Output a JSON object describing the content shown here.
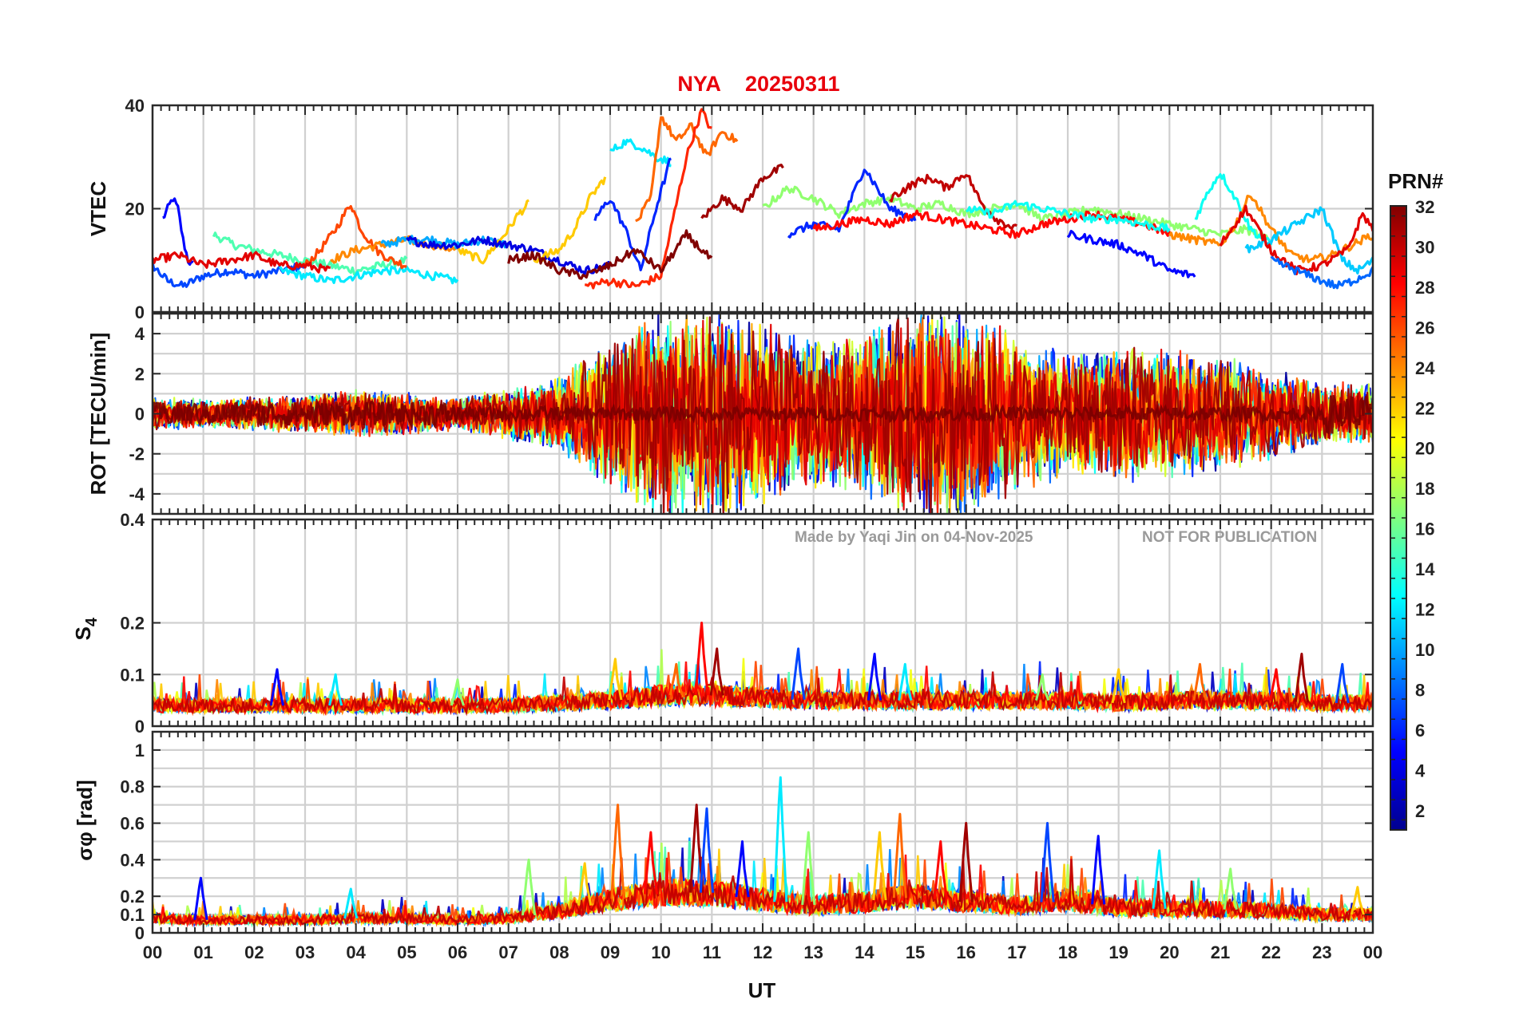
{
  "chart_data": {
    "type": "line",
    "title": {
      "station": "NYA",
      "date": "20250311"
    },
    "xlabel": "UT",
    "xlim": [
      0,
      24
    ],
    "x_tick_labels": [
      "00",
      "01",
      "02",
      "03",
      "04",
      "05",
      "06",
      "07",
      "08",
      "09",
      "10",
      "11",
      "12",
      "13",
      "14",
      "15",
      "16",
      "17",
      "18",
      "19",
      "20",
      "21",
      "22",
      "23",
      "00"
    ],
    "watermark": {
      "left": "Made by Yaqi Jin on 04-Nov-2025",
      "right": "NOT FOR PUBLICATION"
    },
    "colorbar": {
      "label": "PRN#",
      "range": [
        1,
        32
      ],
      "tick_labels": [
        "2",
        "4",
        "6",
        "8",
        "10",
        "12",
        "14",
        "16",
        "18",
        "20",
        "22",
        "24",
        "26",
        "28",
        "30",
        "32"
      ],
      "tick_values": [
        2,
        4,
        6,
        8,
        10,
        12,
        14,
        16,
        18,
        20,
        22,
        24,
        26,
        28,
        30,
        32
      ],
      "colormap": "jet"
    },
    "panels": [
      {
        "id": "vtec",
        "ylabel": "VTEC",
        "ylim": [
          0,
          40
        ],
        "y_tick_labels": [
          "0",
          "20",
          "40"
        ],
        "y_tick_values": [
          0,
          20,
          40
        ],
        "series": [
          {
            "prn": 5,
            "x": [
              0.2,
              0.3,
              0.4,
              0.5,
              0.6,
              0.7,
              0.8
            ],
            "y": [
              18,
              20,
              22,
              20,
              14,
              10,
              9
            ]
          },
          {
            "prn": 7,
            "x": [
              0.0,
              0.3,
              0.6,
              1.0,
              1.5,
              2.0,
              2.5,
              3.0
            ],
            "y": [
              9,
              6,
              5,
              7,
              8,
              7,
              8,
              9
            ]
          },
          {
            "prn": 15,
            "x": [
              1.2,
              1.6,
              2.0,
              2.5,
              3.0,
              3.5,
              4.0,
              4.5,
              5.0
            ],
            "y": [
              15,
              13,
              12,
              11,
              10,
              9,
              8,
              9,
              10
            ]
          },
          {
            "prn": 12,
            "x": [
              2.5,
              3.0,
              3.5,
              4.0,
              4.5,
              5.0,
              5.5,
              6.0
            ],
            "y": [
              8,
              7,
              6,
              7,
              8,
              8,
              7,
              6
            ]
          },
          {
            "prn": 26,
            "x": [
              3.0,
              3.3,
              3.6,
              3.9,
              4.1,
              4.4,
              4.7,
              5.0
            ],
            "y": [
              9,
              12,
              16,
              21,
              16,
              12,
              10,
              9
            ]
          },
          {
            "prn": 24,
            "x": [
              3.5,
              4.0,
              4.5,
              5.0,
              5.5,
              6.0
            ],
            "y": [
              10,
              12,
              13,
              14,
              13,
              12
            ]
          },
          {
            "prn": 10,
            "x": [
              4.5,
              5.0,
              5.5,
              6.0,
              6.5,
              7.0
            ],
            "y": [
              13,
              14,
              14,
              13,
              14,
              13
            ]
          },
          {
            "prn": 22,
            "x": [
              6.0,
              6.5,
              7.0,
              7.2,
              7.4
            ],
            "y": [
              12,
              10,
              16,
              19,
              21
            ]
          },
          {
            "prn": 29,
            "x": [
              0.0,
              0.5,
              1.0,
              1.5,
              2.0,
              2.5,
              3.0,
              3.5
            ],
            "y": [
              10,
              11,
              9,
              10,
              11,
              9,
              9,
              8
            ]
          },
          {
            "prn": 4,
            "x": [
              5.0,
              5.5,
              6.0,
              6.5,
              7.0,
              7.5,
              8.0,
              8.5,
              9.0
            ],
            "y": [
              14,
              13,
              13,
              14,
              13,
              12,
              10,
              8,
              9
            ]
          },
          {
            "prn": 22,
            "x": [
              7.5,
              8.0,
              8.3,
              8.6,
              8.9
            ],
            "y": [
              10,
              12,
              16,
              22,
              26
            ]
          },
          {
            "prn": 12,
            "x": [
              9.0,
              9.3,
              9.6,
              9.9,
              10.2
            ],
            "y": [
              31,
              33,
              32,
              30,
              29
            ]
          },
          {
            "prn": 25,
            "x": [
              9.5,
              9.8,
              10.0,
              10.3,
              10.6,
              10.9,
              11.2,
              11.5
            ],
            "y": [
              17,
              22,
              38,
              33,
              36,
              30,
              35,
              33
            ]
          },
          {
            "prn": 27,
            "x": [
              8.5,
              9.0,
              9.5,
              10.0,
              10.5,
              10.8,
              11.0
            ],
            "y": [
              5,
              6,
              5,
              7,
              30,
              39,
              35
            ]
          },
          {
            "prn": 31,
            "x": [
              10.8,
              11.2,
              11.6,
              12.0,
              12.4
            ],
            "y": [
              18,
              22,
              20,
              26,
              28
            ]
          },
          {
            "prn": 6,
            "x": [
              8.7,
              9.0,
              9.3,
              9.6,
              9.9,
              10.2
            ],
            "y": [
              18,
              22,
              16,
              8,
              20,
              30
            ]
          },
          {
            "prn": 17,
            "x": [
              12.0,
              12.5,
              13.0,
              13.5,
              14.0,
              14.5,
              15.0,
              15.5,
              16.0,
              16.5,
              17.0,
              17.5,
              18.0,
              18.5,
              19.0,
              19.5,
              20.0,
              20.5,
              21.0,
              21.5,
              22.0
            ],
            "y": [
              20,
              24,
              22,
              19,
              21,
              22,
              20,
              21,
              19,
              20,
              21,
              18,
              19,
              20,
              19,
              18,
              17,
              16,
              15,
              16,
              14
            ]
          },
          {
            "prn": 6,
            "x": [
              12.5,
              13.0,
              13.5,
              14.0,
              14.5,
              15.0
            ],
            "y": [
              15,
              17,
              16,
              28,
              20,
              18
            ]
          },
          {
            "prn": 28,
            "x": [
              13.0,
              13.5,
              14.0,
              14.5,
              15.0,
              15.5,
              16.0,
              16.5,
              17.0,
              17.5,
              18.0,
              18.5,
              19.0,
              19.5,
              20.0
            ],
            "y": [
              16,
              17,
              18,
              17,
              19,
              18,
              17,
              16,
              15,
              17,
              18,
              19,
              18,
              17,
              15
            ]
          },
          {
            "prn": 30,
            "x": [
              14.5,
              15.0,
              15.3,
              15.6,
              16.0,
              16.3,
              16.6,
              17.0
            ],
            "y": [
              22,
              25,
              26,
              24,
              27,
              21,
              18,
              16
            ]
          },
          {
            "prn": 13,
            "x": [
              16.0,
              16.5,
              17.0,
              17.5,
              18.0,
              18.5,
              19.0,
              19.5,
              20.0
            ],
            "y": [
              20,
              19,
              21,
              20,
              19,
              18,
              18,
              17,
              16
            ]
          },
          {
            "prn": 5,
            "x": [
              18.0,
              18.5,
              19.0,
              19.5,
              20.0,
              20.5
            ],
            "y": [
              15,
              14,
              13,
              11,
              8,
              7
            ]
          },
          {
            "prn": 13,
            "x": [
              20.5,
              20.8,
              21.0,
              21.3,
              21.6,
              22.0
            ],
            "y": [
              18,
              24,
              27,
              22,
              16,
              13
            ]
          },
          {
            "prn": 24,
            "x": [
              20.0,
              20.5,
              21.0,
              21.3,
              21.6,
              22.0,
              22.4,
              22.8,
              23.2,
              23.6,
              24.0
            ],
            "y": [
              15,
              14,
              13,
              17,
              23,
              16,
              11,
              10,
              11,
              13,
              15
            ]
          },
          {
            "prn": 11,
            "x": [
              21.5,
              22.0,
              22.5,
              23.0,
              23.4,
              23.7,
              24.0
            ],
            "y": [
              12,
              14,
              17,
              20,
              10,
              8,
              10
            ]
          },
          {
            "prn": 29,
            "x": [
              21.0,
              21.5,
              22.0,
              22.5,
              23.0,
              23.5,
              23.8,
              24.0
            ],
            "y": [
              13,
              20,
              12,
              8,
              9,
              12,
              19,
              16
            ]
          },
          {
            "prn": 32,
            "x": [
              7.0,
              7.5,
              8.0,
              8.5,
              9.0,
              9.5,
              10.0,
              10.5,
              11.0
            ],
            "y": [
              10,
              11,
              8,
              7,
              9,
              12,
              8,
              15,
              10
            ]
          },
          {
            "prn": 8,
            "x": [
              22.0,
              22.5,
              23.0,
              23.3,
              23.6,
              24.0
            ],
            "y": [
              10,
              8,
              6,
              5,
              6,
              8
            ]
          }
        ]
      },
      {
        "id": "rot",
        "ylabel": "ROT [TECU/min]",
        "ylim": [
          -5,
          5
        ],
        "y_tick_labels": [
          "-4",
          "-2",
          "0",
          "2",
          "4"
        ],
        "y_tick_values": [
          -4,
          -2,
          0,
          2,
          4
        ],
        "series_envelope": {
          "description": "many PRN traces clipped at ±5 TECU/min",
          "x": [
            0,
            1,
            2,
            3,
            4,
            5,
            6,
            7,
            8,
            9,
            10,
            11,
            12,
            13,
            14,
            15,
            16,
            17,
            18,
            19,
            20,
            21,
            22,
            23,
            24
          ],
          "amplitude": [
            0.8,
            0.7,
            0.8,
            0.9,
            1.1,
            1.0,
            0.8,
            1.2,
            1.8,
            3.5,
            5.0,
            5.0,
            4.5,
            3.5,
            4.0,
            5.0,
            5.0,
            3.8,
            3.0,
            3.2,
            3.0,
            2.8,
            2.2,
            1.5,
            1.4
          ]
        }
      },
      {
        "id": "s4",
        "ylabel": "S4",
        "ylabel_sub": "4",
        "ylim": [
          0,
          0.4
        ],
        "y_tick_labels": [
          "0",
          "0.1",
          "0.2",
          "0.4"
        ],
        "y_tick_values": [
          0,
          0.1,
          0.2,
          0.4
        ],
        "series_envelope": {
          "x": [
            0,
            1,
            2,
            3,
            4,
            5,
            6,
            7,
            8,
            9,
            10,
            11,
            12,
            13,
            14,
            15,
            16,
            17,
            18,
            19,
            20,
            21,
            22,
            23,
            24
          ],
          "baseline": [
            0.04,
            0.04,
            0.04,
            0.04,
            0.04,
            0.04,
            0.04,
            0.04,
            0.045,
            0.05,
            0.06,
            0.06,
            0.055,
            0.05,
            0.05,
            0.05,
            0.05,
            0.05,
            0.05,
            0.045,
            0.05,
            0.05,
            0.05,
            0.045,
            0.045
          ],
          "spikes": [
            {
              "x": 2.45,
              "y": 0.11
            },
            {
              "x": 3.6,
              "y": 0.1
            },
            {
              "x": 6.0,
              "y": 0.09
            },
            {
              "x": 9.1,
              "y": 0.13
            },
            {
              "x": 10.3,
              "y": 0.12
            },
            {
              "x": 10.8,
              "y": 0.2
            },
            {
              "x": 11.1,
              "y": 0.15
            },
            {
              "x": 12.7,
              "y": 0.15
            },
            {
              "x": 14.2,
              "y": 0.14
            },
            {
              "x": 14.8,
              "y": 0.12
            },
            {
              "x": 17.5,
              "y": 0.1
            },
            {
              "x": 19.0,
              "y": 0.11
            },
            {
              "x": 20.6,
              "y": 0.12
            },
            {
              "x": 22.1,
              "y": 0.11
            },
            {
              "x": 22.6,
              "y": 0.14
            },
            {
              "x": 23.4,
              "y": 0.12
            }
          ]
        }
      },
      {
        "id": "sigma_phi",
        "ylabel": "σφ [rad]",
        "ylim": [
          0,
          1.1
        ],
        "y_tick_labels": [
          "0",
          "0.1",
          "0.2",
          "0.4",
          "0.6",
          "0.8",
          "1"
        ],
        "y_tick_values": [
          0,
          0.1,
          0.2,
          0.4,
          0.6,
          0.8,
          1.0
        ],
        "series_envelope": {
          "x": [
            0,
            1,
            2,
            3,
            4,
            5,
            6,
            7,
            8,
            9,
            10,
            11,
            12,
            13,
            14,
            15,
            16,
            17,
            18,
            19,
            20,
            21,
            22,
            23,
            24
          ],
          "baseline": [
            0.08,
            0.07,
            0.07,
            0.07,
            0.08,
            0.08,
            0.07,
            0.08,
            0.12,
            0.18,
            0.22,
            0.22,
            0.18,
            0.15,
            0.17,
            0.2,
            0.17,
            0.15,
            0.18,
            0.14,
            0.13,
            0.13,
            0.12,
            0.1,
            0.1
          ],
          "spikes": [
            {
              "x": 0.95,
              "y": 0.3
            },
            {
              "x": 3.9,
              "y": 0.24
            },
            {
              "x": 7.4,
              "y": 0.4
            },
            {
              "x": 8.5,
              "y": 0.38
            },
            {
              "x": 9.15,
              "y": 0.7
            },
            {
              "x": 9.8,
              "y": 0.55
            },
            {
              "x": 10.7,
              "y": 0.7
            },
            {
              "x": 10.9,
              "y": 0.68
            },
            {
              "x": 11.6,
              "y": 0.5
            },
            {
              "x": 12.35,
              "y": 0.85
            },
            {
              "x": 12.9,
              "y": 0.55
            },
            {
              "x": 14.3,
              "y": 0.55
            },
            {
              "x": 14.7,
              "y": 0.65
            },
            {
              "x": 15.5,
              "y": 0.5
            },
            {
              "x": 16.0,
              "y": 0.6
            },
            {
              "x": 17.6,
              "y": 0.6
            },
            {
              "x": 18.6,
              "y": 0.53
            },
            {
              "x": 19.8,
              "y": 0.45
            },
            {
              "x": 21.2,
              "y": 0.35
            },
            {
              "x": 23.7,
              "y": 0.25
            }
          ]
        }
      }
    ]
  }
}
